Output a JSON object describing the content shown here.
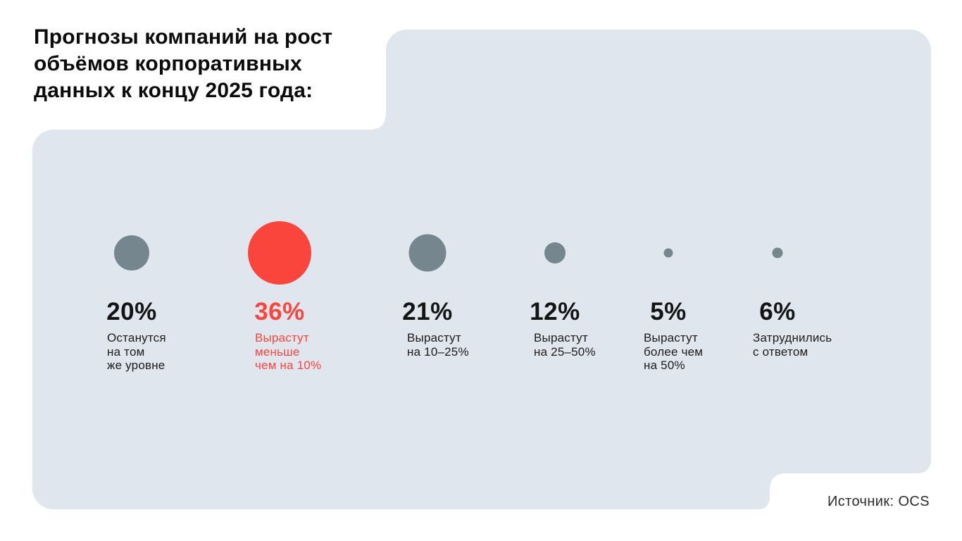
{
  "colors": {
    "background": "#FFFFFF",
    "panel": "#E0E6ED",
    "bubble": "#75868F",
    "highlight": "#F9453C",
    "title_text": "#0B0B0B",
    "value_text": "#141414",
    "label_text": "#1B1B1B",
    "source_text": "#2B2B2B"
  },
  "header": {
    "title": "Прогнозы компаний на рост объёмов корпоративных данных к концу 2025 года:",
    "title_lines": [
      "Прогнозы компаний на рост",
      "объёмов корпоративных",
      "данных к концу 2025 года:"
    ]
  },
  "footer": {
    "source": "Источник: OCS"
  },
  "chart_data": {
    "type": "bubble",
    "title": "Прогнозы компаний на рост объёмов корпоративных данных к концу 2025 года:",
    "unit": "%",
    "legend_position": "none",
    "grid": false,
    "bubble_sizing": "diameter proportional to value",
    "items": [
      {
        "value": 20,
        "value_label": "20%",
        "label": "Останутся на том же уровне",
        "label_lines": [
          "Останутся",
          "на том",
          "же уровне"
        ],
        "highlight": false
      },
      {
        "value": 36,
        "value_label": "36%",
        "label": "Вырастут меньше чем на 10%",
        "label_lines": [
          "Вырастут",
          "меньше",
          "чем на 10%"
        ],
        "highlight": true
      },
      {
        "value": 21,
        "value_label": "21%",
        "label": "Вырастут на 10–25%",
        "label_lines": [
          "Вырастут",
          "на 10–25%"
        ],
        "highlight": false
      },
      {
        "value": 12,
        "value_label": "12%",
        "label": "Вырастут на 25–50%",
        "label_lines": [
          "Вырастут",
          "на 25–50%"
        ],
        "highlight": false
      },
      {
        "value": 5,
        "value_label": "5%",
        "label": "Вырастут более чем на 50%",
        "label_lines": [
          "Вырастут",
          "более чем",
          "на 50%"
        ],
        "highlight": false
      },
      {
        "value": 6,
        "value_label": "6%",
        "label": "Затруднились с ответом",
        "label_lines": [
          "Затруднились",
          "с ответом"
        ],
        "highlight": false
      }
    ]
  }
}
